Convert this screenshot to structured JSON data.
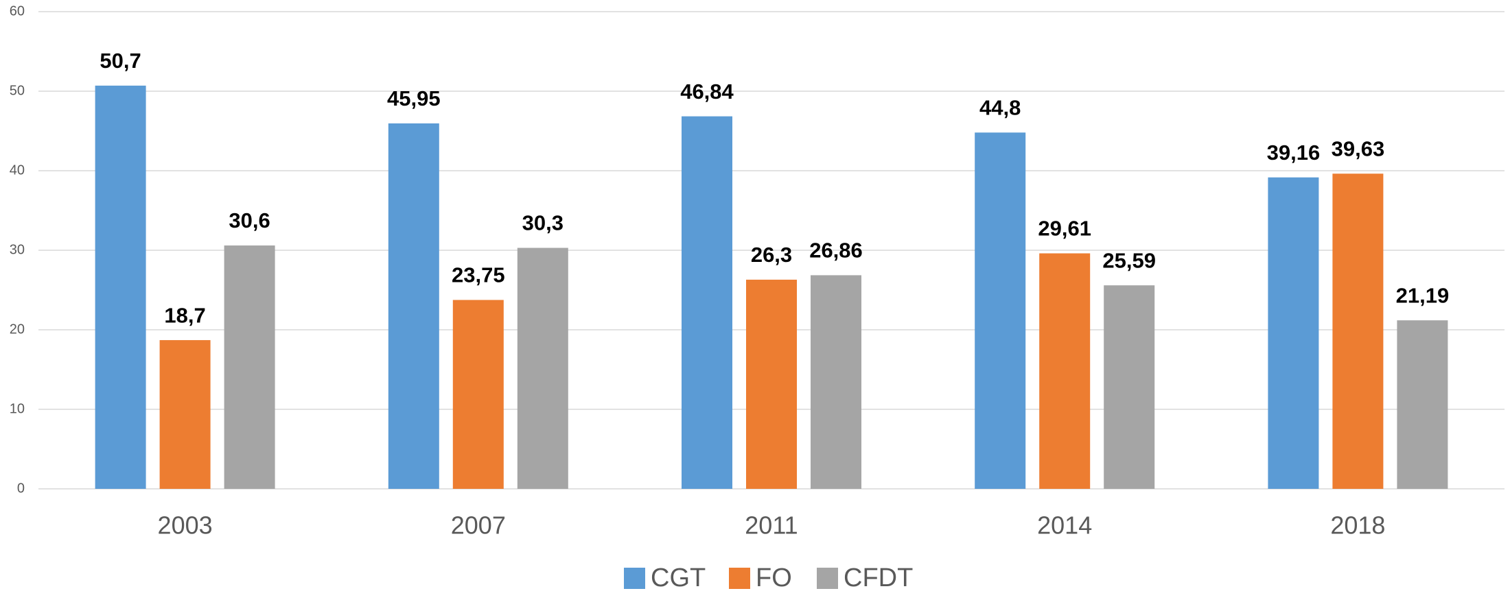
{
  "chart_data": {
    "type": "bar",
    "categories": [
      "2003",
      "2007",
      "2011",
      "2014",
      "2018"
    ],
    "series": [
      {
        "name": "CGT",
        "color": "#5b9bd5",
        "values": [
          50.7,
          45.95,
          46.84,
          44.8,
          39.16
        ],
        "value_labels": [
          "50,7",
          "45,95",
          "46,84",
          "44,8",
          "39,16"
        ]
      },
      {
        "name": "FO",
        "color": "#ed7d31",
        "values": [
          18.7,
          23.75,
          26.3,
          29.61,
          39.63
        ],
        "value_labels": [
          "18,7",
          "23,75",
          "26,3",
          "29,61",
          "39,63"
        ]
      },
      {
        "name": "CFDT",
        "color": "#a5a5a5",
        "values": [
          30.6,
          30.3,
          26.86,
          25.59,
          21.19
        ],
        "value_labels": [
          "30,6",
          "30,3",
          "26,86",
          "25,59",
          "21,19"
        ]
      }
    ],
    "ylim": [
      0,
      60
    ],
    "yticks": [
      0,
      10,
      20,
      30,
      40,
      50,
      60
    ],
    "grid": true,
    "legend": "bottom"
  }
}
